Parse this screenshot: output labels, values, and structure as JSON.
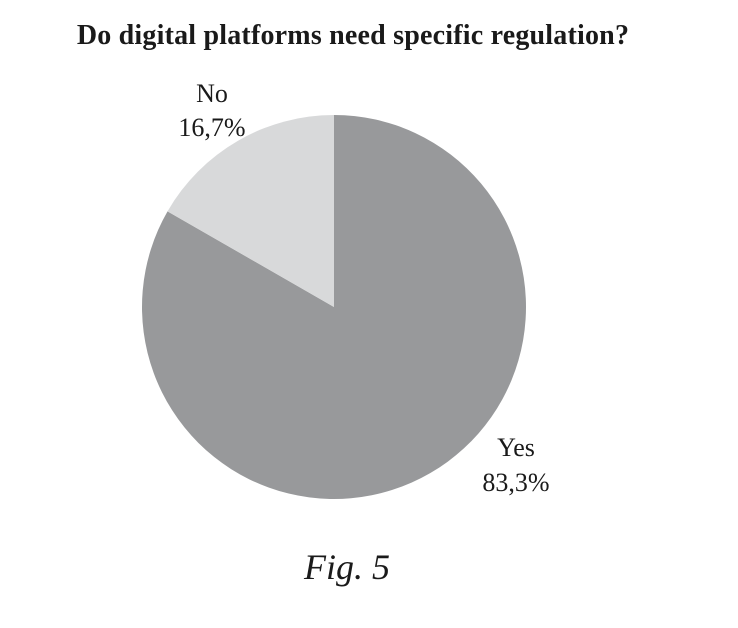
{
  "chart_data": {
    "type": "pie",
    "title": "Do digital platforms need specific regulation?",
    "slices": [
      {
        "label": "Yes",
        "value": 83.3,
        "value_text": "83,3%",
        "color": "#98999b"
      },
      {
        "label": "No",
        "value": 16.7,
        "value_text": "16,7%",
        "color": "#d8d9da"
      }
    ],
    "start": "12 o'clock",
    "direction": "clockwise",
    "legend": "none"
  },
  "caption": "Fig. 5"
}
